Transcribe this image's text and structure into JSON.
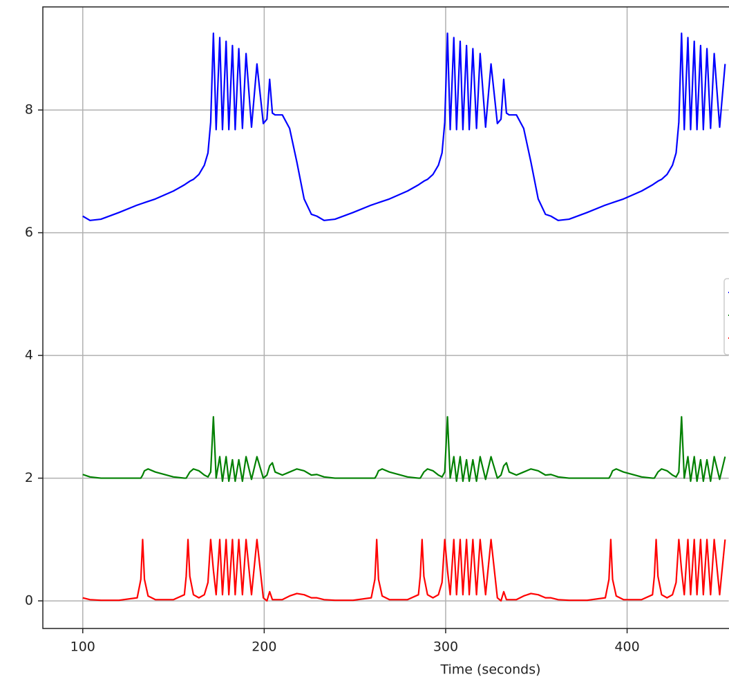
{
  "chart_data": {
    "type": "line",
    "xlabel": "Time (seconds)",
    "xlim": [
      78,
      456
    ],
    "xticks": [
      100,
      200,
      300,
      400
    ],
    "ylim": [
      -0.45,
      9.68
    ],
    "yticks": [
      0,
      2,
      4,
      6,
      8
    ],
    "grid": true,
    "x": [
      100,
      104,
      110,
      120,
      130,
      132,
      133,
      134,
      136,
      140,
      150,
      156,
      157,
      158,
      159,
      161,
      164,
      167,
      169,
      170.5,
      172,
      173.5,
      175.5,
      177,
      179,
      180.5,
      182.5,
      184,
      186,
      188,
      190,
      193,
      196,
      199.5,
      201.5,
      203,
      204.5,
      206,
      210,
      214,
      218,
      222,
      226,
      229,
      233,
      239,
      249,
      259,
      261,
      262,
      263,
      265,
      269,
      279,
      285,
      286,
      287,
      288,
      290,
      293,
      296,
      298,
      299.5,
      301,
      302.5,
      304.5,
      306,
      308,
      309.5,
      311.5,
      313,
      315,
      317,
      319,
      322,
      325,
      328.5,
      330.5,
      332,
      333.5,
      335,
      339,
      343,
      347,
      351,
      355,
      358,
      362,
      368,
      378,
      388,
      390,
      391,
      392,
      394,
      398,
      408,
      414,
      415,
      416,
      417,
      419,
      422,
      425,
      427,
      428.5,
      430,
      431.5,
      433.5,
      435,
      437,
      438.5,
      440.5,
      442,
      444,
      446,
      448,
      451,
      454
    ],
    "series": [
      {
        "color": "#0000ff",
        "values": [
          6.27,
          6.2,
          6.22,
          6.33,
          6.45,
          6.47,
          6.48,
          6.49,
          6.51,
          6.55,
          6.68,
          6.78,
          6.8,
          6.82,
          6.84,
          6.87,
          6.95,
          7.1,
          7.3,
          7.8,
          9.25,
          7.68,
          9.18,
          7.68,
          9.12,
          7.68,
          9.05,
          7.68,
          9.0,
          7.7,
          8.92,
          7.72,
          8.75,
          7.78,
          7.85,
          8.5,
          7.95,
          7.92,
          7.92,
          7.7,
          7.15,
          6.55,
          6.3,
          6.27,
          6.2,
          6.22,
          6.33,
          6.45,
          6.47,
          6.48,
          6.49,
          6.51,
          6.55,
          6.68,
          6.78,
          6.8,
          6.82,
          6.84,
          6.87,
          6.95,
          7.1,
          7.3,
          7.8,
          9.25,
          7.68,
          9.18,
          7.68,
          9.12,
          7.68,
          9.05,
          7.68,
          9.0,
          7.7,
          8.92,
          7.72,
          8.75,
          7.78,
          7.85,
          8.5,
          7.95,
          7.92,
          7.92,
          7.7,
          7.15,
          6.55,
          6.3,
          6.27,
          6.2,
          6.22,
          6.33,
          6.45,
          6.47,
          6.48,
          6.49,
          6.51,
          6.55,
          6.68,
          6.78,
          6.8,
          6.82,
          6.84,
          6.87,
          6.95,
          7.1,
          7.3,
          7.8,
          9.25,
          7.68,
          9.18,
          7.68,
          9.12,
          7.68,
          9.05,
          7.68,
          9.0,
          7.7,
          8.92,
          7.72,
          8.75
        ]
      },
      {
        "color": "#008000",
        "values": [
          2.06,
          2.02,
          2.0,
          2.0,
          2.0,
          2.0,
          2.05,
          2.12,
          2.15,
          2.1,
          2.02,
          2.0,
          2.0,
          2.05,
          2.1,
          2.15,
          2.12,
          2.05,
          2.02,
          2.1,
          3.0,
          2.0,
          2.35,
          1.95,
          2.35,
          1.95,
          2.3,
          1.95,
          2.3,
          1.95,
          2.35,
          1.98,
          2.35,
          2.0,
          2.05,
          2.2,
          2.25,
          2.1,
          2.05,
          2.1,
          2.15,
          2.12,
          2.05,
          2.06,
          2.02,
          2.0,
          2.0,
          2.0,
          2.0,
          2.05,
          2.12,
          2.15,
          2.1,
          2.02,
          2.0,
          2.0,
          2.05,
          2.1,
          2.15,
          2.12,
          2.05,
          2.02,
          2.1,
          3.0,
          2.0,
          2.35,
          1.95,
          2.35,
          1.95,
          2.3,
          1.95,
          2.3,
          1.95,
          2.35,
          1.98,
          2.35,
          2.0,
          2.05,
          2.2,
          2.25,
          2.1,
          2.05,
          2.1,
          2.15,
          2.12,
          2.05,
          2.06,
          2.02,
          2.0,
          2.0,
          2.0,
          2.0,
          2.05,
          2.12,
          2.15,
          2.1,
          2.02,
          2.0,
          2.0,
          2.05,
          2.1,
          2.15,
          2.12,
          2.05,
          2.02,
          2.1,
          3.0,
          2.0,
          2.35,
          1.95,
          2.35,
          1.95,
          2.3,
          1.95,
          2.3,
          1.95,
          2.35,
          1.98,
          2.35
        ]
      },
      {
        "color": "#ff0000",
        "values": [
          0.05,
          0.02,
          0.01,
          0.01,
          0.05,
          0.35,
          1.0,
          0.35,
          0.08,
          0.02,
          0.02,
          0.1,
          0.4,
          1.0,
          0.4,
          0.1,
          0.05,
          0.1,
          0.3,
          1.0,
          0.5,
          0.1,
          1.0,
          0.1,
          1.0,
          0.1,
          1.0,
          0.1,
          1.0,
          0.1,
          1.0,
          0.1,
          1.0,
          0.05,
          0.0,
          0.15,
          0.02,
          0.02,
          0.02,
          0.08,
          0.12,
          0.1,
          0.05,
          0.05,
          0.02,
          0.01,
          0.01,
          0.05,
          0.35,
          1.0,
          0.35,
          0.08,
          0.02,
          0.02,
          0.1,
          0.4,
          1.0,
          0.4,
          0.1,
          0.05,
          0.1,
          0.3,
          1.0,
          0.5,
          0.1,
          1.0,
          0.1,
          1.0,
          0.1,
          1.0,
          0.1,
          1.0,
          0.1,
          1.0,
          0.1,
          1.0,
          0.05,
          0.0,
          0.15,
          0.02,
          0.02,
          0.02,
          0.08,
          0.12,
          0.1,
          0.05,
          0.05,
          0.02,
          0.01,
          0.01,
          0.05,
          0.35,
          1.0,
          0.35,
          0.08,
          0.02,
          0.02,
          0.1,
          0.4,
          1.0,
          0.4,
          0.1,
          0.05,
          0.1,
          0.3,
          1.0,
          0.5,
          0.1,
          1.0,
          0.1,
          1.0,
          0.1,
          1.0,
          0.1,
          1.0,
          0.1,
          1.0,
          0.1,
          1.0
        ]
      }
    ]
  }
}
